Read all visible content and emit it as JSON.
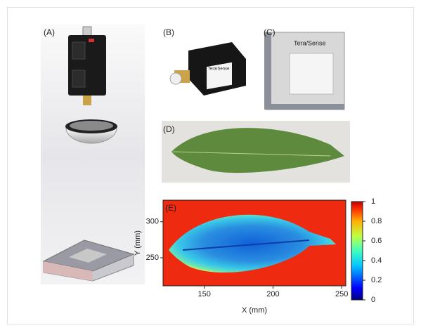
{
  "panels": {
    "a": "(A)",
    "b": "(B)",
    "c": "(C)",
    "d": "(D)",
    "e": "(E)"
  },
  "brand": "Tera/Sense",
  "heatmap": {
    "xlabel": "X (mm)",
    "ylabel": "Y (mm)",
    "xlim": [
      120,
      253
    ],
    "ylim": [
      211,
      330
    ],
    "xticks": [
      150,
      200,
      250
    ],
    "yticks": [
      250,
      300
    ],
    "colorbar": {
      "lim": [
        0,
        1
      ],
      "ticks": [
        0,
        0.2,
        0.4,
        0.6,
        0.8,
        1
      ]
    }
  }
}
